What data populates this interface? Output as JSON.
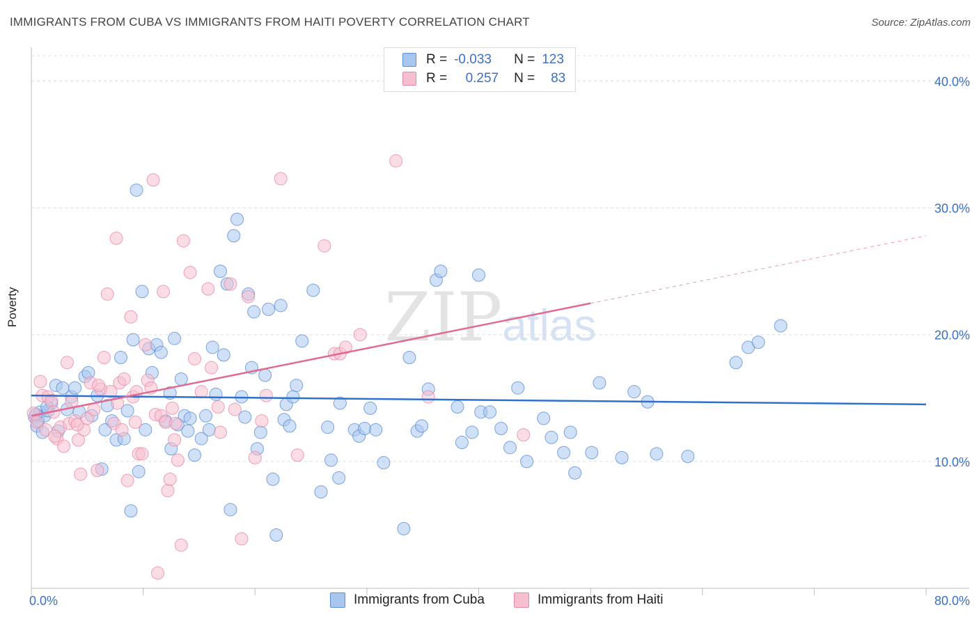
{
  "title": "IMMIGRANTS FROM CUBA VS IMMIGRANTS FROM HAITI POVERTY CORRELATION CHART",
  "source": "Source: ZipAtlas.com",
  "watermark": {
    "zip": "ZIP",
    "atlas": "atlas"
  },
  "legend": {
    "rows": [
      {
        "r_label": "R =",
        "r_value": "-0.033",
        "n_label": "N =",
        "n_value": "123"
      },
      {
        "r_label": "R =",
        "r_value": "0.257",
        "n_label": "N =",
        "n_value": "83"
      }
    ]
  },
  "colors": {
    "cuba_fill": "#a9c6ee",
    "cuba_stroke": "#5b8fd6",
    "cuba_line": "#2f6fcf",
    "haiti_fill": "#f6bfcf",
    "haiti_stroke": "#e88aa6",
    "haiti_line": "#e06a92",
    "grid": "#dddddd",
    "tick_text": "#3a6fc4"
  },
  "chart_data": {
    "type": "scatter",
    "title": "IMMIGRANTS FROM CUBA VS IMMIGRANTS FROM HAITI POVERTY CORRELATION CHART",
    "xlabel": "",
    "ylabel": "Poverty",
    "xlim": [
      0,
      80
    ],
    "ylim": [
      0,
      42
    ],
    "x_tick_labels": [
      "0.0%",
      "80.0%"
    ],
    "y_ticks": [
      10,
      20,
      30,
      40
    ],
    "y_tick_labels": [
      "10.0%",
      "20.0%",
      "30.0%",
      "40.0%"
    ],
    "series": [
      {
        "name": "Immigrants from Cuba",
        "r": -0.033,
        "n": 123,
        "trend": {
          "x": [
            0,
            80
          ],
          "y": [
            15.2,
            14.5
          ],
          "dashed_from": null
        },
        "points": [
          [
            0.3,
            13.5
          ],
          [
            0.5,
            12.8
          ],
          [
            0.6,
            13.2
          ],
          [
            0.8,
            13.9
          ],
          [
            1.0,
            12.3
          ],
          [
            1.2,
            13.6
          ],
          [
            1.5,
            14.0
          ],
          [
            1.8,
            14.6
          ],
          [
            2.2,
            16.0
          ],
          [
            2.4,
            12.4
          ],
          [
            2.8,
            15.8
          ],
          [
            3.2,
            14.1
          ],
          [
            3.6,
            15.1
          ],
          [
            3.9,
            15.8
          ],
          [
            4.3,
            13.9
          ],
          [
            4.8,
            16.7
          ],
          [
            5.1,
            17.0
          ],
          [
            5.4,
            13.6
          ],
          [
            5.9,
            15.2
          ],
          [
            6.3,
            9.4
          ],
          [
            6.6,
            12.5
          ],
          [
            6.8,
            14.4
          ],
          [
            7.2,
            13.2
          ],
          [
            7.6,
            11.7
          ],
          [
            8.0,
            18.2
          ],
          [
            8.3,
            11.8
          ],
          [
            8.6,
            14.0
          ],
          [
            8.9,
            6.1
          ],
          [
            9.1,
            19.6
          ],
          [
            9.4,
            31.4
          ],
          [
            9.6,
            9.2
          ],
          [
            9.9,
            23.4
          ],
          [
            10.2,
            12.5
          ],
          [
            10.5,
            18.9
          ],
          [
            10.8,
            17.0
          ],
          [
            11.2,
            19.2
          ],
          [
            11.6,
            18.6
          ],
          [
            12.0,
            13.2
          ],
          [
            12.4,
            15.4
          ],
          [
            12.5,
            11.0
          ],
          [
            12.8,
            19.7
          ],
          [
            13.1,
            12.9
          ],
          [
            13.4,
            16.5
          ],
          [
            13.7,
            13.6
          ],
          [
            14.0,
            12.4
          ],
          [
            14.2,
            13.4
          ],
          [
            14.6,
            10.5
          ],
          [
            15.2,
            11.8
          ],
          [
            15.6,
            13.6
          ],
          [
            15.9,
            12.5
          ],
          [
            16.2,
            19.0
          ],
          [
            16.5,
            15.3
          ],
          [
            16.9,
            25.0
          ],
          [
            17.2,
            18.4
          ],
          [
            17.5,
            24.0
          ],
          [
            17.8,
            6.2
          ],
          [
            18.1,
            27.8
          ],
          [
            18.4,
            29.1
          ],
          [
            18.8,
            15.1
          ],
          [
            19.1,
            13.5
          ],
          [
            19.4,
            23.2
          ],
          [
            19.7,
            17.4
          ],
          [
            19.9,
            21.8
          ],
          [
            20.2,
            11.0
          ],
          [
            20.5,
            12.3
          ],
          [
            20.9,
            16.8
          ],
          [
            21.2,
            22.0
          ],
          [
            21.6,
            8.6
          ],
          [
            21.9,
            4.2
          ],
          [
            22.3,
            22.3
          ],
          [
            22.6,
            13.3
          ],
          [
            22.8,
            14.5
          ],
          [
            23.1,
            12.8
          ],
          [
            23.4,
            15.1
          ],
          [
            23.7,
            16.0
          ],
          [
            24.2,
            19.5
          ],
          [
            25.2,
            23.5
          ],
          [
            25.9,
            7.6
          ],
          [
            26.5,
            12.7
          ],
          [
            26.8,
            10.1
          ],
          [
            27.5,
            8.7
          ],
          [
            27.6,
            14.6
          ],
          [
            28.9,
            12.5
          ],
          [
            29.3,
            12.0
          ],
          [
            29.8,
            12.6
          ],
          [
            30.3,
            14.2
          ],
          [
            30.8,
            12.5
          ],
          [
            31.5,
            9.9
          ],
          [
            33.3,
            4.7
          ],
          [
            33.8,
            18.2
          ],
          [
            34.5,
            12.4
          ],
          [
            34.9,
            12.8
          ],
          [
            35.5,
            15.7
          ],
          [
            36.2,
            24.3
          ],
          [
            36.6,
            25.0
          ],
          [
            38.1,
            14.3
          ],
          [
            38.5,
            11.5
          ],
          [
            39.4,
            12.3
          ],
          [
            40.0,
            24.7
          ],
          [
            40.2,
            13.9
          ],
          [
            41.0,
            13.9
          ],
          [
            42.0,
            12.6
          ],
          [
            42.8,
            11.1
          ],
          [
            43.5,
            15.8
          ],
          [
            44.3,
            10.0
          ],
          [
            45.8,
            13.4
          ],
          [
            46.5,
            11.9
          ],
          [
            47.6,
            10.7
          ],
          [
            48.2,
            12.3
          ],
          [
            48.6,
            9.1
          ],
          [
            50.1,
            10.7
          ],
          [
            50.8,
            16.2
          ],
          [
            52.8,
            10.3
          ],
          [
            53.9,
            15.5
          ],
          [
            55.1,
            14.7
          ],
          [
            55.9,
            10.6
          ],
          [
            58.7,
            10.4
          ],
          [
            63.0,
            17.8
          ],
          [
            64.1,
            19.0
          ],
          [
            65.0,
            19.4
          ],
          [
            67.0,
            20.7
          ],
          [
            0.4,
            13.7
          ],
          [
            1.4,
            14.3
          ]
        ]
      },
      {
        "name": "Immigrants from Haiti",
        "r": 0.257,
        "n": 83,
        "trend": {
          "x": [
            0,
            80
          ],
          "y": [
            13.6,
            27.8
          ],
          "dashed_from": 50
        },
        "points": [
          [
            0.2,
            13.8
          ],
          [
            0.5,
            13.1
          ],
          [
            0.8,
            16.3
          ],
          [
            1.0,
            15.2
          ],
          [
            1.3,
            12.5
          ],
          [
            1.5,
            15.1
          ],
          [
            1.8,
            14.8
          ],
          [
            2.0,
            13.9
          ],
          [
            2.3,
            11.8
          ],
          [
            2.6,
            12.7
          ],
          [
            2.9,
            11.2
          ],
          [
            3.2,
            17.8
          ],
          [
            3.4,
            13.0
          ],
          [
            3.6,
            14.7
          ],
          [
            3.9,
            13.2
          ],
          [
            4.2,
            11.7
          ],
          [
            4.4,
            9.0
          ],
          [
            4.7,
            12.5
          ],
          [
            5.0,
            13.4
          ],
          [
            5.3,
            16.2
          ],
          [
            5.6,
            14.1
          ],
          [
            5.9,
            9.3
          ],
          [
            6.2,
            15.7
          ],
          [
            6.5,
            18.2
          ],
          [
            6.8,
            23.2
          ],
          [
            7.1,
            15.5
          ],
          [
            7.4,
            13.0
          ],
          [
            7.6,
            27.6
          ],
          [
            7.9,
            16.2
          ],
          [
            8.1,
            12.5
          ],
          [
            8.3,
            16.5
          ],
          [
            8.6,
            8.5
          ],
          [
            8.9,
            21.4
          ],
          [
            9.1,
            15.1
          ],
          [
            9.4,
            15.5
          ],
          [
            9.6,
            10.6
          ],
          [
            9.9,
            10.6
          ],
          [
            10.2,
            19.2
          ],
          [
            10.4,
            16.4
          ],
          [
            10.7,
            15.8
          ],
          [
            10.9,
            32.2
          ],
          [
            11.1,
            13.7
          ],
          [
            11.3,
            1.2
          ],
          [
            11.6,
            13.6
          ],
          [
            11.8,
            23.4
          ],
          [
            12.0,
            13.1
          ],
          [
            12.2,
            7.7
          ],
          [
            12.4,
            8.6
          ],
          [
            12.6,
            14.2
          ],
          [
            12.8,
            11.7
          ],
          [
            13.1,
            10.1
          ],
          [
            13.4,
            3.4
          ],
          [
            13.6,
            27.4
          ],
          [
            14.2,
            24.9
          ],
          [
            14.6,
            18.1
          ],
          [
            15.2,
            15.5
          ],
          [
            15.8,
            23.6
          ],
          [
            16.1,
            17.4
          ],
          [
            16.7,
            14.3
          ],
          [
            17.8,
            24.0
          ],
          [
            18.2,
            14.1
          ],
          [
            18.8,
            3.9
          ],
          [
            19.4,
            23.0
          ],
          [
            20.0,
            10.3
          ],
          [
            21.0,
            15.2
          ],
          [
            22.3,
            32.3
          ],
          [
            23.8,
            10.5
          ],
          [
            26.2,
            27.0
          ],
          [
            27.1,
            18.5
          ],
          [
            27.6,
            18.5
          ],
          [
            28.1,
            19.0
          ],
          [
            29.4,
            20.0
          ],
          [
            32.6,
            33.7
          ],
          [
            35.5,
            15.1
          ],
          [
            44.0,
            12.1
          ],
          [
            9.3,
            13.1
          ],
          [
            6.0,
            16.0
          ],
          [
            4.1,
            12.9
          ],
          [
            7.7,
            14.6
          ],
          [
            2.1,
            12.0
          ],
          [
            12.9,
            13.0
          ],
          [
            16.9,
            12.3
          ],
          [
            20.6,
            13.2
          ]
        ]
      }
    ]
  },
  "bottom_legend": [
    {
      "label": "Immigrants from Cuba"
    },
    {
      "label": "Immigrants from Haiti"
    }
  ]
}
